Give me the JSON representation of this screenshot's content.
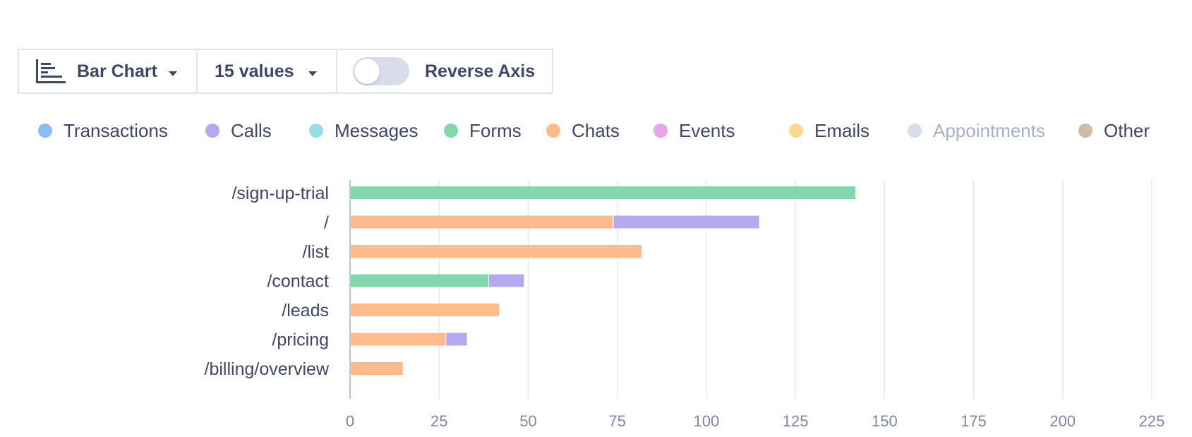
{
  "toolbar": {
    "chart_type_label": "Bar Chart",
    "values_label": "15 values",
    "reverse_axis_label": "Reverse Axis",
    "reverse_axis_on": false
  },
  "legend": [
    {
      "name": "Transactions",
      "color": "#8bbcf5",
      "active": true
    },
    {
      "name": "Calls",
      "color": "#b3a9ec",
      "active": true
    },
    {
      "name": "Messages",
      "color": "#94e0e3",
      "active": true
    },
    {
      "name": "Forms",
      "color": "#80d8ac",
      "active": true
    },
    {
      "name": "Chats",
      "color": "#ffbb8b",
      "active": true
    },
    {
      "name": "Events",
      "color": "#e8a5e8",
      "active": true
    },
    {
      "name": "Emails",
      "color": "#ffd88c",
      "active": true
    },
    {
      "name": "Appointments",
      "color": "#d8dceb",
      "active": false
    },
    {
      "name": "Other",
      "color": "#cdbda6",
      "active": true
    }
  ],
  "chart_data": {
    "type": "bar",
    "orientation": "horizontal",
    "stacked": true,
    "categories": [
      "/sign-up-trial",
      "/",
      "/list",
      "/contact",
      "/leads",
      "/pricing",
      "/billing/overview"
    ],
    "series": [
      {
        "name": "Forms",
        "color": "#80d8ac",
        "values": [
          142,
          0,
          0,
          39,
          0,
          0,
          0
        ]
      },
      {
        "name": "Chats",
        "color": "#ffbb8b",
        "values": [
          0,
          74,
          82,
          0,
          42,
          27,
          15
        ]
      },
      {
        "name": "Calls",
        "color": "#b3a9ec",
        "values": [
          0,
          41,
          0,
          10,
          0,
          6,
          0
        ]
      }
    ],
    "xlim": [
      0,
      225
    ],
    "xticks": [
      0,
      25,
      50,
      75,
      100,
      125,
      150,
      175,
      200,
      225
    ],
    "grid": true,
    "xlabel": "",
    "ylabel": ""
  }
}
